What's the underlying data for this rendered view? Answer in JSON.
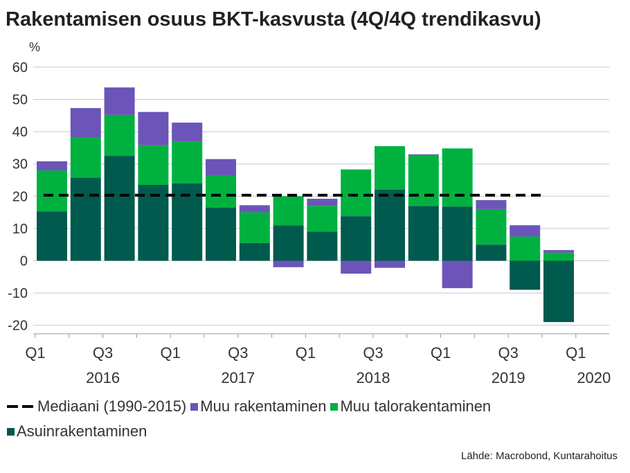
{
  "chart_data": {
    "type": "bar",
    "stacked": true,
    "title": "Rakentamisen osuus BKT-kasvusta (4Q/4Q trendikasvu)",
    "ylabel": "%",
    "ylim": [
      -22,
      62
    ],
    "yticks": [
      60,
      50,
      40,
      30,
      20,
      10,
      0,
      -10,
      -20
    ],
    "ytick_labels": [
      "60",
      "50",
      "40",
      "30",
      "20",
      "10",
      "0",
      "-10",
      "-20"
    ],
    "grid": true,
    "categories": [
      "2016Q1",
      "2016Q2",
      "2016Q3",
      "2016Q4",
      "2017Q1",
      "2017Q2",
      "2017Q3",
      "2017Q4",
      "2018Q1",
      "2018Q2",
      "2018Q3",
      "2018Q4",
      "2019Q1",
      "2019Q2",
      "2019Q3",
      "2019Q4"
    ],
    "series": [
      {
        "name": "Asuinrakentaminen",
        "color": "#005a4e",
        "values": [
          15.3,
          25.8,
          32.5,
          23.5,
          24.0,
          16.5,
          5.5,
          11.0,
          9.0,
          13.8,
          22.0,
          17.0,
          16.8,
          5.0,
          -9.0,
          -19.0
        ]
      },
      {
        "name": "Muu talorakentaminen",
        "color": "#00b140",
        "values": [
          12.7,
          12.5,
          12.7,
          12.3,
          13.0,
          10.0,
          9.5,
          9.0,
          8.0,
          14.5,
          13.5,
          15.8,
          18.0,
          11.0,
          7.5,
          2.5
        ]
      },
      {
        "name": "Muu rakentaminen",
        "color": "#6b55b8",
        "values": [
          2.8,
          9.0,
          8.5,
          10.3,
          5.8,
          5.0,
          2.2,
          -2.0,
          2.2,
          -4.0,
          -2.2,
          0.2,
          -8.5,
          2.8,
          3.5,
          0.8
        ]
      }
    ],
    "median": {
      "name": "Mediaani (1990-2015)",
      "value": 20.3,
      "color": "#000000"
    },
    "x_tick_labels": [
      "Q1",
      "Q3",
      "Q1",
      "Q3",
      "Q1",
      "Q3",
      "Q1",
      "Q3",
      "Q1"
    ],
    "x_year_labels": [
      "2016",
      "2017",
      "2018",
      "2019",
      "2020"
    ],
    "legend": {
      "position": "bottom",
      "entries": [
        "Mediaani (1990-2015)",
        "Muu rakentaminen",
        "Muu talorakentaminen",
        "Asuinrakentaminen"
      ]
    }
  },
  "source": "Lähde: Macrobond, Kuntarahoitus"
}
